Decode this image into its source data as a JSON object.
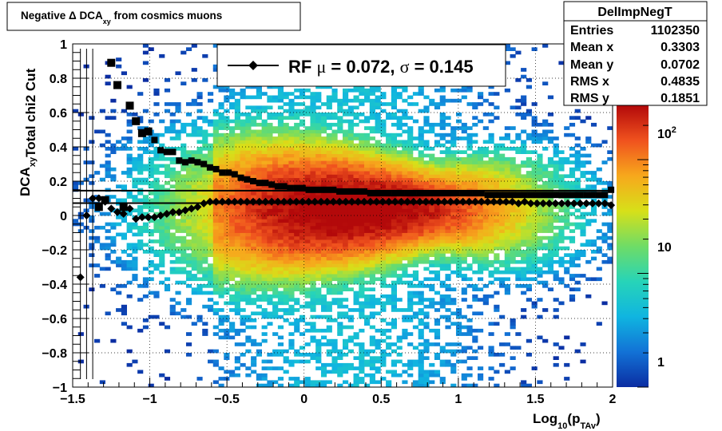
{
  "title": "Negative Δ DCA",
  "title_sub": "xy",
  "title_tail": " from cosmics muons",
  "stats": {
    "name": "DelImpNegT",
    "rows": [
      {
        "label": "Entries",
        "value": "1102350"
      },
      {
        "label": "Mean x",
        "value": "0.3303"
      },
      {
        "label": "Mean y",
        "value": "0.0702"
      },
      {
        "label": "RMS x",
        "value": "0.4835"
      },
      {
        "label": "RMS y",
        "value": "0.1851"
      }
    ]
  },
  "legend": {
    "entry": "RF",
    "mu_symbol": "μ",
    "mu_text": " =  0.072,",
    "sigma_symbol": "σ",
    "sigma_text": " =   0.145"
  },
  "axes": {
    "ylabel_main": "DCA",
    "ylabel_sub": "xy",
    "ylabel_tail": "Total chi2 Cut",
    "xlabel_pre": "Log",
    "xlabel_sub1": "10",
    "xlabel_mid": "(p",
    "xlabel_sub2": "TAv",
    "xlabel_post": ")",
    "x_ticks": [
      "−1.5",
      "−1",
      "−0.5",
      "0",
      "0.5",
      "1",
      "1.5",
      "2"
    ],
    "y_ticks": [
      "−1",
      "−0.8",
      "−0.6",
      "−0.4",
      "−0.2",
      "0",
      "0.2",
      "0.4",
      "0.6",
      "0.8",
      "1"
    ]
  },
  "colorbar": {
    "labels": [
      "1",
      "10",
      "10"
    ],
    "exp": "2",
    "colors": [
      "#0b2da2",
      "#1272d6",
      "#10b5e0",
      "#27d4b8",
      "#6fdc66",
      "#d7e019",
      "#f7a81c",
      "#f0521e",
      "#b3090a"
    ]
  },
  "chart_data": {
    "type": "heatmap",
    "xlim": [
      -1.5,
      2
    ],
    "ylim": [
      -1,
      1
    ],
    "grid": true,
    "log_z": true,
    "fit_lines": [
      0.072,
      0.145
    ],
    "series": [
      {
        "name": "RF",
        "marker": "circle",
        "x": [
          -1.45,
          -1.41,
          -1.37,
          -1.33,
          -1.29,
          -1.25,
          -1.21,
          -1.17,
          -1.13,
          -1.09,
          -1.05,
          -1.01,
          -0.97,
          -0.93,
          -0.89,
          -0.85,
          -0.81,
          -0.77,
          -0.73,
          -0.69,
          -0.65,
          -0.61,
          -0.57,
          -0.53,
          -0.49,
          -0.45,
          -0.41,
          -0.37,
          -0.33,
          -0.29,
          -0.25,
          -0.21,
          -0.17,
          -0.13,
          -0.09,
          -0.05,
          -0.01,
          0.03,
          0.07,
          0.11,
          0.15,
          0.19,
          0.23,
          0.27,
          0.31,
          0.35,
          0.39,
          0.43,
          0.47,
          0.51,
          0.55,
          0.59,
          0.63,
          0.67,
          0.71,
          0.75,
          0.79,
          0.83,
          0.87,
          0.91,
          0.95,
          0.99,
          1.03,
          1.07,
          1.11,
          1.15,
          1.19,
          1.23,
          1.27,
          1.31,
          1.35,
          1.39,
          1.43,
          1.47,
          1.51,
          1.55,
          1.59,
          1.63,
          1.67,
          1.71,
          1.75,
          1.79,
          1.83,
          1.87,
          1.91,
          1.95,
          1.99
        ],
        "y": [
          -0.36,
          0.0,
          0.1,
          0.1,
          0.08,
          0.04,
          0.02,
          0.01,
          0.04,
          -0.02,
          -0.01,
          -0.01,
          -0.01,
          0.0,
          0.01,
          0.02,
          0.02,
          0.03,
          0.04,
          0.05,
          0.07,
          0.08,
          0.08,
          0.08,
          0.08,
          0.08,
          0.08,
          0.08,
          0.08,
          0.08,
          0.08,
          0.08,
          0.08,
          0.08,
          0.08,
          0.08,
          0.08,
          0.08,
          0.08,
          0.08,
          0.08,
          0.08,
          0.08,
          0.08,
          0.08,
          0.08,
          0.08,
          0.08,
          0.08,
          0.08,
          0.08,
          0.08,
          0.08,
          0.08,
          0.08,
          0.08,
          0.08,
          0.08,
          0.08,
          0.08,
          0.08,
          0.08,
          0.08,
          0.08,
          0.08,
          0.08,
          0.08,
          0.08,
          0.08,
          0.08,
          0.08,
          0.07,
          0.08,
          0.07,
          0.07,
          0.07,
          0.07,
          0.07,
          0.07,
          0.07,
          0.07,
          0.07,
          0.07,
          0.07,
          0.07,
          0.07,
          0.06
        ]
      },
      {
        "name": "",
        "marker": "square",
        "x": [
          -1.33,
          -1.29,
          -1.25,
          -1.21,
          -1.17,
          -1.13,
          -1.09,
          -1.05,
          -1.01,
          -0.97,
          -0.93,
          -0.89,
          -0.85,
          -0.81,
          -0.77,
          -0.73,
          -0.69,
          -0.65,
          -0.61,
          -0.57,
          -0.53,
          -0.49,
          -0.45,
          -0.41,
          -0.37,
          -0.33,
          -0.29,
          -0.25,
          -0.21,
          -0.17,
          -0.13,
          -0.09,
          -0.05,
          -0.01,
          0.03,
          0.07,
          0.11,
          0.15,
          0.19,
          0.23,
          0.27,
          0.31,
          0.35,
          0.39,
          0.43,
          0.47,
          0.51,
          0.55,
          0.59,
          0.63,
          0.67,
          0.71,
          0.75,
          0.79,
          0.83,
          0.87,
          0.91,
          0.95,
          0.99,
          1.03,
          1.07,
          1.11,
          1.15,
          1.19,
          1.23,
          1.27,
          1.31,
          1.35,
          1.39,
          1.43,
          1.47,
          1.51,
          1.55,
          1.59,
          1.63,
          1.67,
          1.71,
          1.75,
          1.79,
          1.83,
          1.87,
          1.91,
          1.95,
          1.99
        ],
        "y": [
          0.05,
          0.09,
          0.89,
          0.76,
          0.05,
          0.64,
          0.55,
          0.48,
          0.49,
          0.44,
          0.38,
          0.37,
          0.37,
          0.32,
          0.31,
          0.32,
          0.31,
          0.3,
          0.28,
          0.27,
          0.25,
          0.25,
          0.24,
          0.22,
          0.21,
          0.2,
          0.19,
          0.19,
          0.18,
          0.17,
          0.17,
          0.16,
          0.16,
          0.16,
          0.15,
          0.15,
          0.15,
          0.15,
          0.15,
          0.14,
          0.14,
          0.14,
          0.14,
          0.14,
          0.13,
          0.13,
          0.13,
          0.13,
          0.13,
          0.13,
          0.13,
          0.13,
          0.13,
          0.13,
          0.13,
          0.13,
          0.13,
          0.13,
          0.13,
          0.13,
          0.13,
          0.13,
          0.13,
          0.12,
          0.12,
          0.12,
          0.12,
          0.12,
          0.12,
          0.12,
          0.12,
          0.12,
          0.12,
          0.12,
          0.12,
          0.12,
          0.12,
          0.12,
          0.12,
          0.12,
          0.12,
          0.12,
          0.12,
          0.15
        ]
      }
    ]
  }
}
